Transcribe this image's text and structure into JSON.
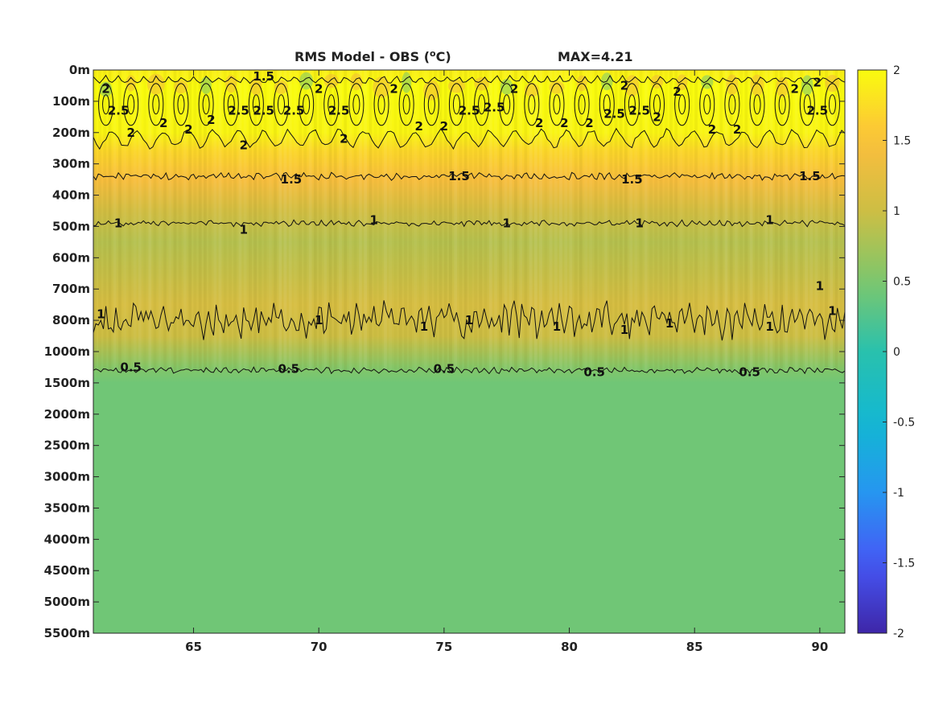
{
  "chart_data": {
    "type": "heatmap",
    "title": "RMS Model - OBS (",
    "title_unit_super": "o",
    "title_unit_tail": "C)",
    "max_annotation": "MAX=4.21",
    "xlim": [
      61,
      91
    ],
    "x_ticks": [
      65,
      70,
      75,
      80,
      85,
      90
    ],
    "y_tick_labels": [
      "0m",
      "100m",
      "200m",
      "300m",
      "400m",
      "500m",
      "600m",
      "700m",
      "800m",
      "1000m",
      "1500m",
      "2000m",
      "2500m",
      "3000m",
      "3500m",
      "4000m",
      "4500m",
      "5000m",
      "5500m"
    ],
    "colorbar": {
      "range": [
        -2,
        2
      ],
      "ticks": [
        2,
        1.5,
        1,
        0.5,
        0,
        -0.5,
        -1,
        -1.5,
        -2
      ],
      "tick_labels": [
        "2",
        "1.5",
        "1",
        "0.5",
        "0",
        "-0.5",
        "-1",
        "-1.5",
        "-2"
      ],
      "colormap": "parula"
    },
    "depth_profile": [
      {
        "depth_index": 0,
        "value": 1.9
      },
      {
        "depth_index": 0.5,
        "value": 2.0
      },
      {
        "depth_index": 1,
        "value": 2.0
      },
      {
        "depth_index": 2,
        "value": 1.95
      },
      {
        "depth_index": 2.6,
        "value": 1.7
      },
      {
        "depth_index": 3.5,
        "value": 1.45
      },
      {
        "depth_index": 4.5,
        "value": 1.05
      },
      {
        "depth_index": 5.5,
        "value": 0.85
      },
      {
        "depth_index": 6.5,
        "value": 0.95
      },
      {
        "depth_index": 7.5,
        "value": 1.1
      },
      {
        "depth_index": 8.5,
        "value": 1.0
      },
      {
        "depth_index": 9.5,
        "value": 0.55
      },
      {
        "depth_index": 10,
        "value": 0.42
      },
      {
        "depth_index": 18,
        "value": 0.42
      }
    ],
    "contours": [
      {
        "level": "1.5",
        "depth_index": 3.4
      },
      {
        "level": "1",
        "depth_index": 4.9
      },
      {
        "level": "1",
        "depth_index": 8.0
      },
      {
        "level": "0.5",
        "depth_index": 9.6
      }
    ],
    "contour_labels": [
      {
        "text": "1.5",
        "x": 67.8,
        "depth_index": 0.2
      },
      {
        "text": "2",
        "x": 61.5,
        "depth_index": 0.6
      },
      {
        "text": "2.5",
        "x": 62.0,
        "depth_index": 1.3
      },
      {
        "text": "2",
        "x": 62.5,
        "depth_index": 2.0
      },
      {
        "text": "2",
        "x": 63.8,
        "depth_index": 1.7
      },
      {
        "text": "2",
        "x": 64.8,
        "depth_index": 1.9
      },
      {
        "text": "2",
        "x": 65.7,
        "depth_index": 1.6
      },
      {
        "text": "2.5",
        "x": 66.8,
        "depth_index": 1.3
      },
      {
        "text": "2.5",
        "x": 67.8,
        "depth_index": 1.3
      },
      {
        "text": "2.5",
        "x": 69.0,
        "depth_index": 1.3
      },
      {
        "text": "2",
        "x": 70.0,
        "depth_index": 0.6
      },
      {
        "text": "2.5",
        "x": 70.8,
        "depth_index": 1.3
      },
      {
        "text": "2",
        "x": 67.0,
        "depth_index": 2.4
      },
      {
        "text": "2",
        "x": 71.0,
        "depth_index": 2.2
      },
      {
        "text": "2",
        "x": 73.0,
        "depth_index": 0.6
      },
      {
        "text": "2",
        "x": 74.0,
        "depth_index": 1.8
      },
      {
        "text": "2",
        "x": 75.0,
        "depth_index": 1.8
      },
      {
        "text": "2.5",
        "x": 76.0,
        "depth_index": 1.3
      },
      {
        "text": "2.5",
        "x": 77.0,
        "depth_index": 1.2
      },
      {
        "text": "2",
        "x": 77.8,
        "depth_index": 0.6
      },
      {
        "text": "2",
        "x": 78.8,
        "depth_index": 1.7
      },
      {
        "text": "2",
        "x": 79.8,
        "depth_index": 1.7
      },
      {
        "text": "2",
        "x": 80.8,
        "depth_index": 1.7
      },
      {
        "text": "2",
        "x": 82.2,
        "depth_index": 0.5
      },
      {
        "text": "2.5",
        "x": 81.8,
        "depth_index": 1.4
      },
      {
        "text": "2.5",
        "x": 82.8,
        "depth_index": 1.3
      },
      {
        "text": "2",
        "x": 84.3,
        "depth_index": 0.7
      },
      {
        "text": "2",
        "x": 83.5,
        "depth_index": 1.5
      },
      {
        "text": "2",
        "x": 85.7,
        "depth_index": 1.9
      },
      {
        "text": "2",
        "x": 86.7,
        "depth_index": 1.9
      },
      {
        "text": "2",
        "x": 89.9,
        "depth_index": 0.4
      },
      {
        "text": "2",
        "x": 89.0,
        "depth_index": 0.6
      },
      {
        "text": "2.5",
        "x": 89.9,
        "depth_index": 1.3
      },
      {
        "text": "1.5",
        "x": 68.9,
        "depth_index": 3.5
      },
      {
        "text": "1.5",
        "x": 75.6,
        "depth_index": 3.4
      },
      {
        "text": "1.5",
        "x": 82.5,
        "depth_index": 3.5
      },
      {
        "text": "1.5",
        "x": 89.6,
        "depth_index": 3.4
      },
      {
        "text": "1",
        "x": 62.0,
        "depth_index": 4.9
      },
      {
        "text": "1",
        "x": 67.0,
        "depth_index": 5.1
      },
      {
        "text": "1",
        "x": 72.2,
        "depth_index": 4.8
      },
      {
        "text": "1",
        "x": 77.5,
        "depth_index": 4.9
      },
      {
        "text": "1",
        "x": 82.8,
        "depth_index": 4.9
      },
      {
        "text": "1",
        "x": 88.0,
        "depth_index": 4.8
      },
      {
        "text": "1",
        "x": 61.3,
        "depth_index": 7.8
      },
      {
        "text": "1",
        "x": 70.0,
        "depth_index": 8.0
      },
      {
        "text": "1",
        "x": 74.2,
        "depth_index": 8.2
      },
      {
        "text": "1",
        "x": 76.0,
        "depth_index": 8.0
      },
      {
        "text": "1",
        "x": 79.5,
        "depth_index": 8.2
      },
      {
        "text": "1",
        "x": 82.2,
        "depth_index": 8.3
      },
      {
        "text": "1",
        "x": 84.0,
        "depth_index": 8.1
      },
      {
        "text": "1",
        "x": 88.0,
        "depth_index": 8.2
      },
      {
        "text": "1",
        "x": 90.5,
        "depth_index": 7.7
      },
      {
        "text": "1",
        "x": 90.0,
        "depth_index": 6.9
      },
      {
        "text": "0.5",
        "x": 62.5,
        "depth_index": 9.5
      },
      {
        "text": "0.5",
        "x": 68.8,
        "depth_index": 9.55
      },
      {
        "text": "0.5",
        "x": 75.0,
        "depth_index": 9.55
      },
      {
        "text": "0.5",
        "x": 81.0,
        "depth_index": 9.65
      },
      {
        "text": "0.5",
        "x": 87.2,
        "depth_index": 9.65
      }
    ]
  }
}
